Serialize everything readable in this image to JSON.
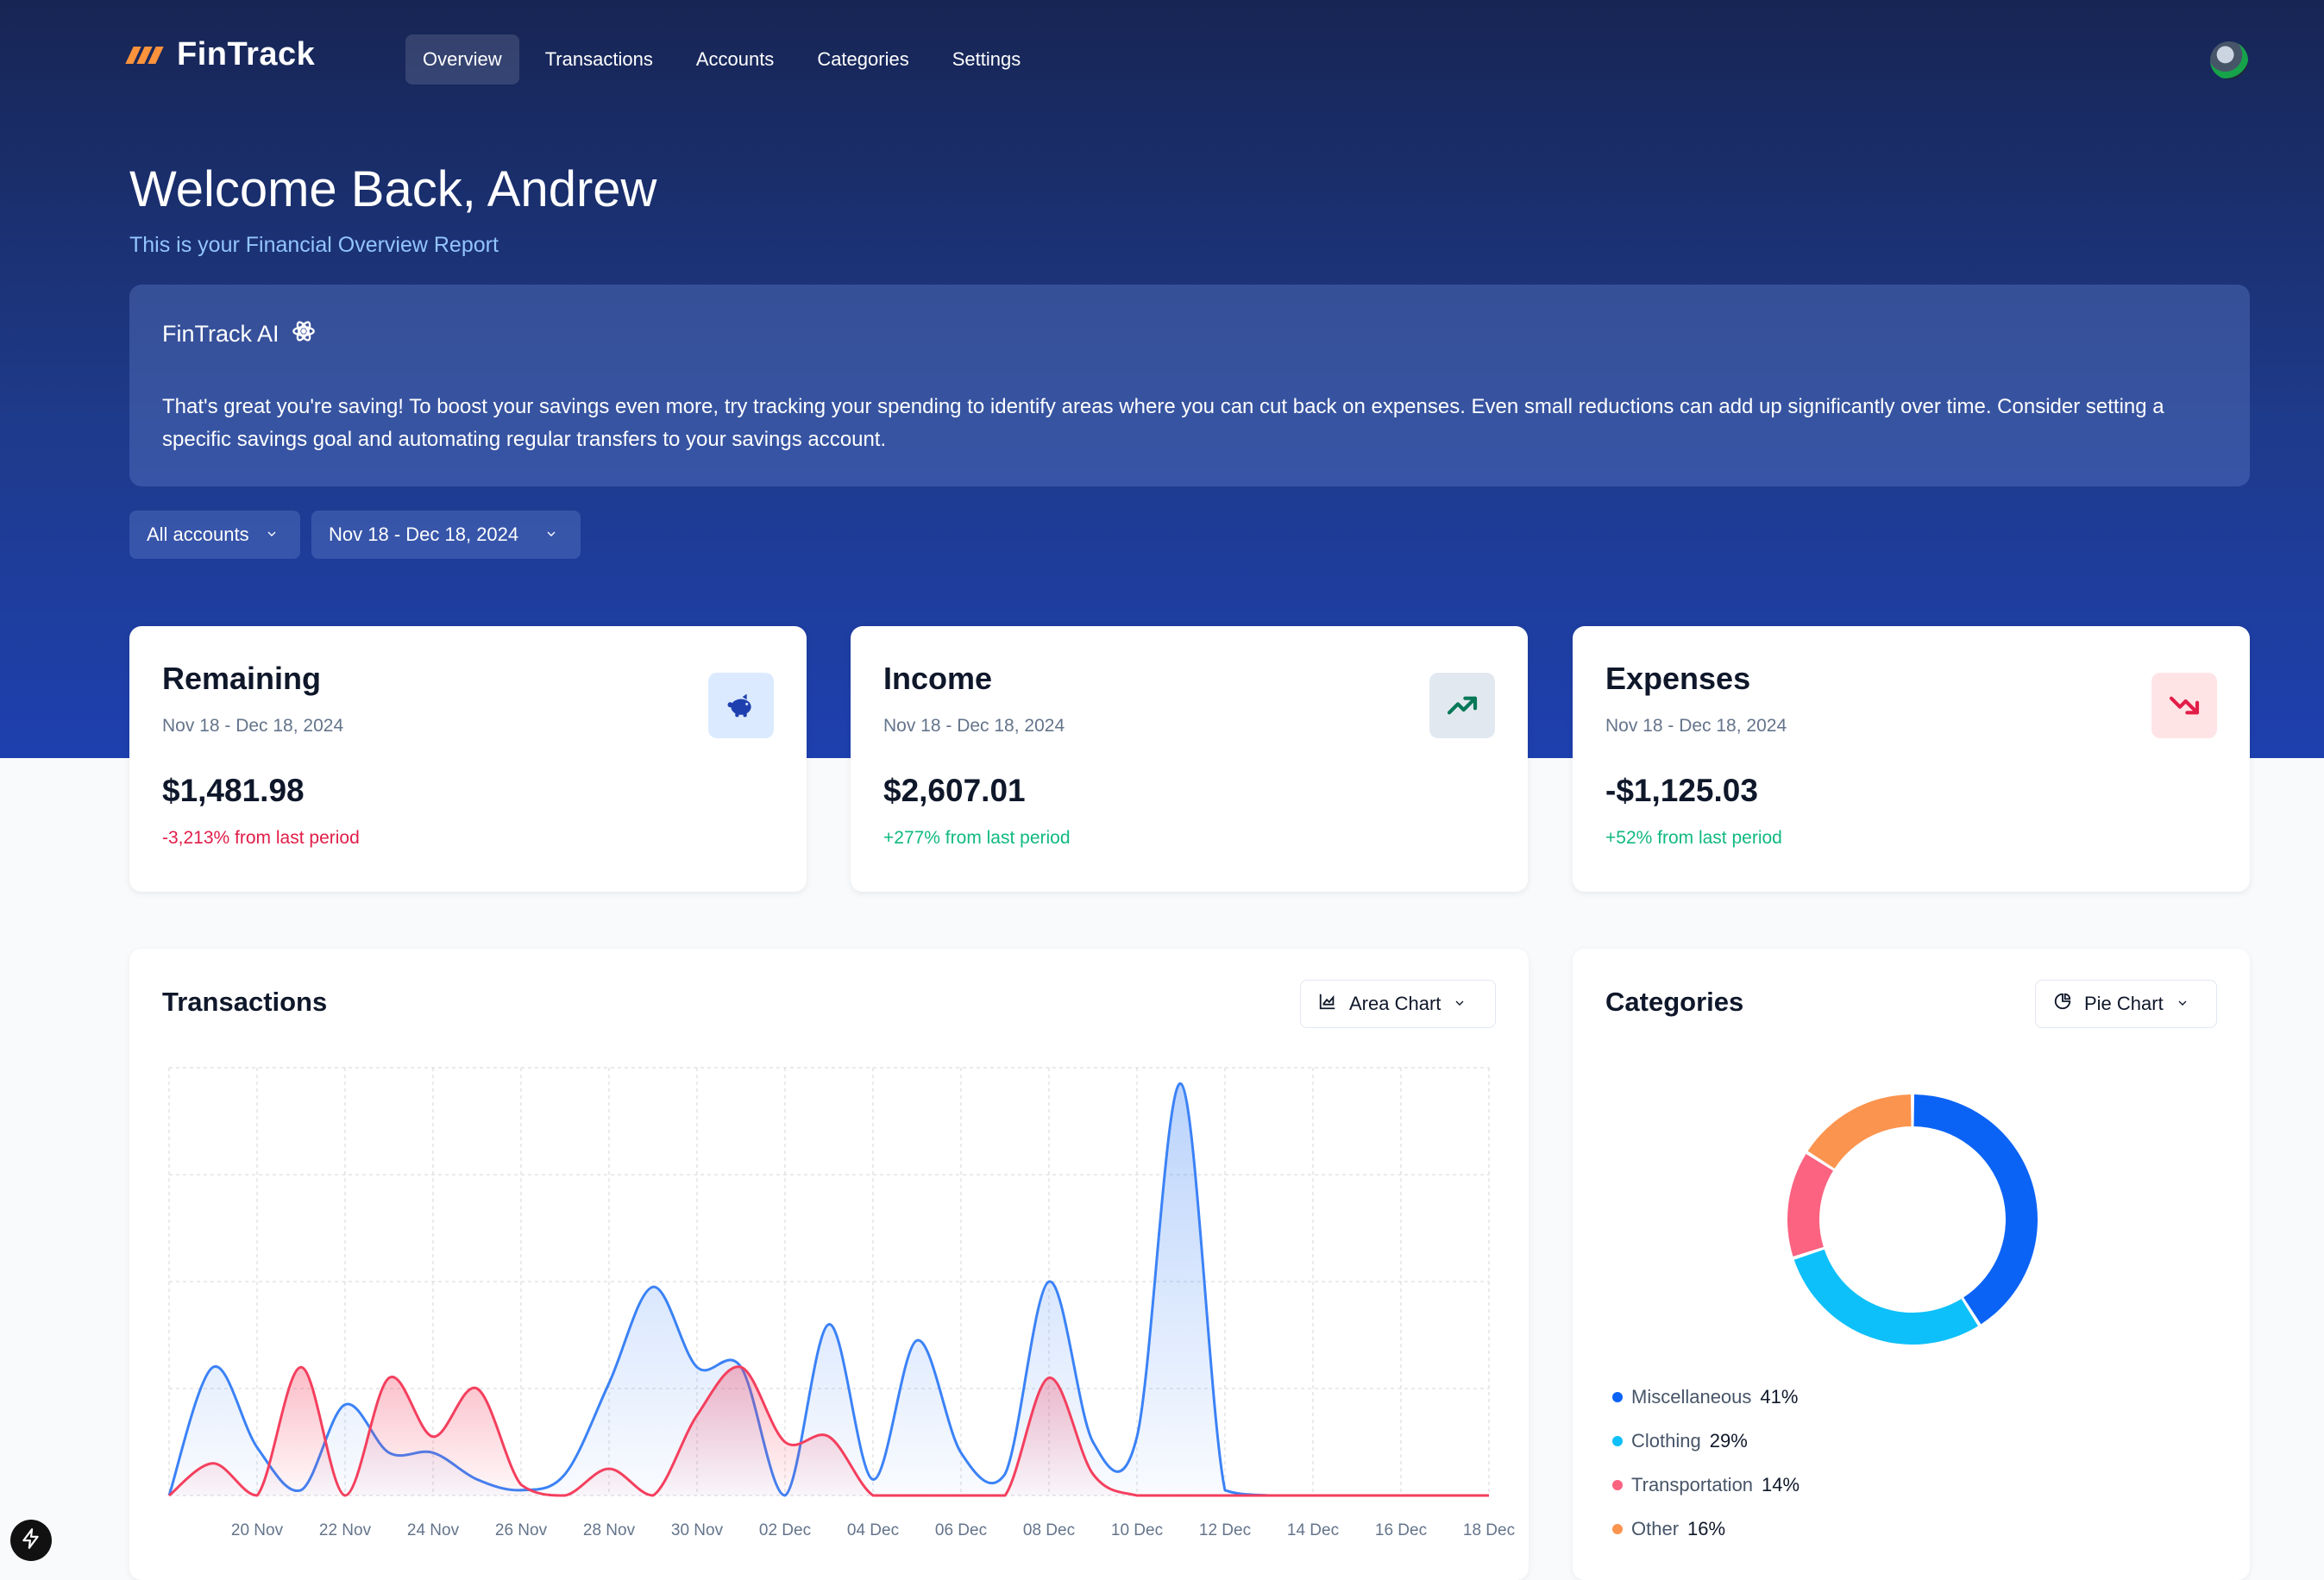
{
  "app": {
    "name": "FinTrack"
  },
  "nav": [
    {
      "label": "Overview",
      "active": true
    },
    {
      "label": "Transactions",
      "active": false
    },
    {
      "label": "Accounts",
      "active": false
    },
    {
      "label": "Categories",
      "active": false
    },
    {
      "label": "Settings",
      "active": false
    }
  ],
  "header": {
    "welcome": "Welcome Back, Andrew",
    "subtitle": "This is your Financial Overview Report"
  },
  "ai": {
    "title": "FinTrack AI",
    "icon": "atom-icon",
    "message": "That's great you're saving! To boost your savings even more, try tracking your spending to identify areas where you can cut back on expenses. Even small reductions can add up significantly over time. Consider setting a specific savings goal and automating regular transfers to your savings account."
  },
  "filters": {
    "account": "All accounts",
    "date_range": "Nov 18 - Dec 18, 2024"
  },
  "stats": [
    {
      "title": "Remaining",
      "range": "Nov 18 - Dec 18, 2024",
      "value": "$1,481.98",
      "change": "-3,213% from last period",
      "trend": "negative",
      "icon": "piggy-bank-icon",
      "icon_bg": "#dbeafe",
      "icon_color": "#1e40af"
    },
    {
      "title": "Income",
      "range": "Nov 18 - Dec 18, 2024",
      "value": "$2,607.01",
      "change": "+277% from last period",
      "trend": "positive",
      "icon": "trending-up-icon",
      "icon_bg": "#e2e8f0",
      "icon_color": "#047857"
    },
    {
      "title": "Expenses",
      "range": "Nov 18 - Dec 18, 2024",
      "value": "-$1,125.03",
      "change": "+52% from last period",
      "trend": "positive",
      "icon": "trending-down-icon",
      "icon_bg": "#ffe4e6",
      "icon_color": "#e11d48"
    }
  ],
  "transactions_panel": {
    "title": "Transactions",
    "chart_type_label": "Area Chart"
  },
  "categories_panel": {
    "title": "Categories",
    "chart_type_label": "Pie Chart"
  },
  "chart_data": [
    {
      "type": "area",
      "x": [
        "18 Nov",
        "19 Nov",
        "20 Nov",
        "21 Nov",
        "22 Nov",
        "23 Nov",
        "24 Nov",
        "25 Nov",
        "26 Nov",
        "27 Nov",
        "28 Nov",
        "29 Nov",
        "30 Nov",
        "01 Dec",
        "02 Dec",
        "03 Dec",
        "04 Dec",
        "05 Dec",
        "06 Dec",
        "07 Dec",
        "08 Dec",
        "09 Dec",
        "10 Dec",
        "11 Dec",
        "12 Dec",
        "13 Dec",
        "14 Dec",
        "15 Dec",
        "16 Dec",
        "17 Dec",
        "18 Dec"
      ],
      "tick_labels": [
        "20 Nov",
        "22 Nov",
        "24 Nov",
        "26 Nov",
        "28 Nov",
        "30 Nov",
        "02 Dec",
        "04 Dec",
        "06 Dec",
        "08 Dec",
        "10 Dec",
        "12 Dec",
        "14 Dec",
        "16 Dec",
        "18 Dec"
      ],
      "series": [
        {
          "values": [
            0,
            240,
            90,
            10,
            170,
            80,
            80,
            30,
            10,
            40,
            210,
            390,
            240,
            240,
            0,
            320,
            30,
            290,
            80,
            40,
            400,
            100,
            110,
            770,
            10,
            0,
            0,
            0,
            0,
            0,
            0
          ],
          "color": "#3b82f6"
        },
        {
          "values": [
            0,
            60,
            0,
            240,
            0,
            220,
            110,
            200,
            20,
            0,
            50,
            0,
            150,
            240,
            100,
            110,
            0,
            0,
            0,
            0,
            220,
            40,
            0,
            0,
            0,
            0,
            0,
            0,
            0,
            0,
            0
          ],
          "color": "#f43f5e"
        }
      ],
      "ylim": [
        0,
        800
      ],
      "grid": true
    },
    {
      "type": "pie",
      "style": "donut",
      "slices": [
        {
          "label": "Miscellaneous",
          "value": 41,
          "display": "41%",
          "color": "#0b63f6"
        },
        {
          "label": "Clothing",
          "value": 29,
          "display": "29%",
          "color": "#0ec0f9"
        },
        {
          "label": "Transportation",
          "value": 14,
          "display": "14%",
          "color": "#fb6381"
        },
        {
          "label": "Other",
          "value": 16,
          "display": "16%",
          "color": "#fb944f"
        }
      ]
    }
  ]
}
